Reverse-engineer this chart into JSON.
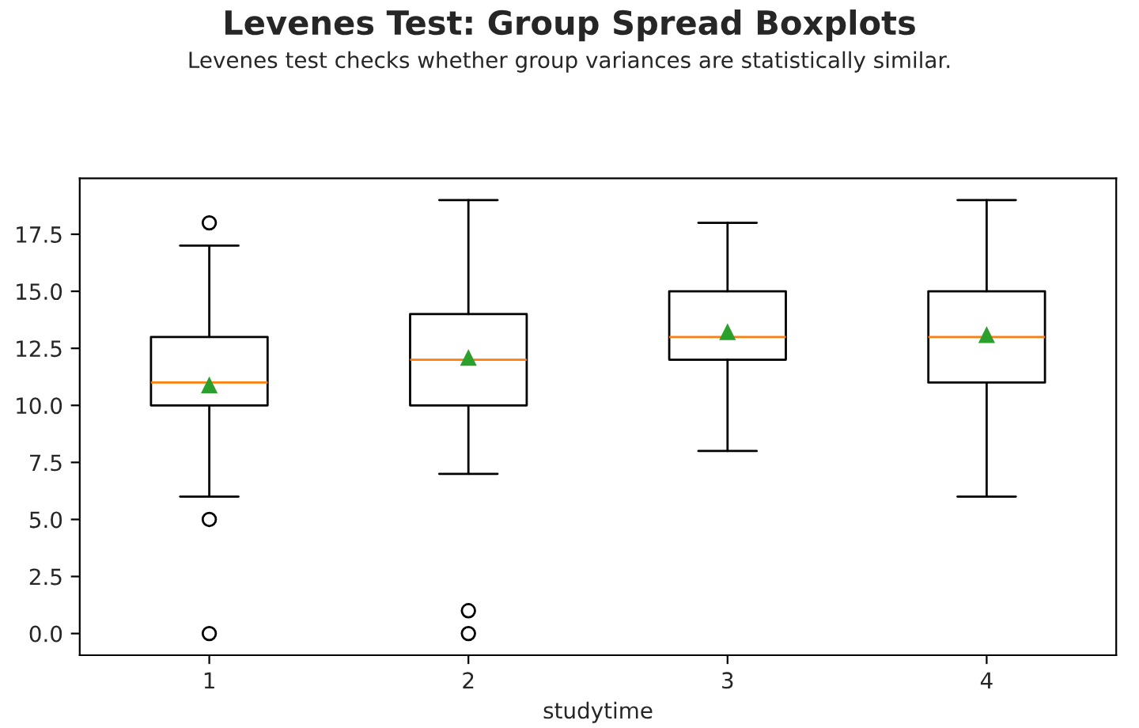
{
  "chart_data": {
    "type": "box",
    "title": "Levenes Test: Group Spread Boxplots",
    "subtitle": "Levenes test checks whether group variances are statistically similar.",
    "xlabel": "studytime",
    "categories": [
      "1",
      "2",
      "3",
      "4"
    ],
    "boxes": [
      {
        "low": 6,
        "q1": 10,
        "median": 11,
        "q3": 13,
        "high": 17,
        "mean": 10.87,
        "outliers": [
          18,
          5,
          0
        ]
      },
      {
        "low": 7,
        "q1": 10,
        "median": 12,
        "q3": 14,
        "high": 19,
        "mean": 12.07,
        "outliers": [
          1,
          0
        ]
      },
      {
        "low": 8,
        "q1": 12,
        "median": 13,
        "q3": 15,
        "high": 18,
        "mean": 13.2
      },
      {
        "low": 6,
        "q1": 11,
        "median": 13,
        "q3": 15,
        "high": 19,
        "mean": 13.07
      }
    ],
    "ylim": [
      -0.95,
      19.95
    ],
    "yticks": [
      {
        "value": 0,
        "label": "0.0"
      },
      2.5,
      {
        "value": 5,
        "label": "5.0"
      },
      7.5,
      {
        "value": 10,
        "label": "10.0"
      },
      12.5,
      {
        "value": 15,
        "label": "15.0"
      },
      17.5
    ],
    "grid": false
  }
}
